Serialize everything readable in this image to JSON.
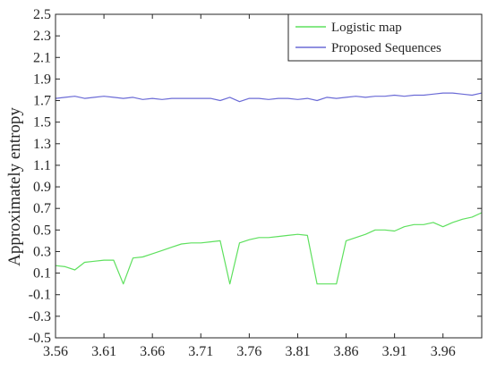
{
  "chart_data": {
    "type": "line",
    "title": "",
    "xlabel": "",
    "ylabel": "Approximately entropy",
    "xlim": [
      3.56,
      4.0
    ],
    "ylim": [
      -0.5,
      2.5
    ],
    "xticks": [
      "3.56",
      "3.61",
      "3.66",
      "3.71",
      "3.76",
      "3.81",
      "3.86",
      "3.91",
      "3.96"
    ],
    "yticks": [
      "-0.5",
      "-0.3",
      "-0.1",
      "0.1",
      "0.3",
      "0.5",
      "0.7",
      "0.9",
      "1.1",
      "1.3",
      "1.5",
      "1.7",
      "1.9",
      "2.1",
      "2.3",
      "2.5"
    ],
    "grid": false,
    "legend_position": "top-right",
    "series": [
      {
        "name": "Logistic map",
        "color": "#5ee05e",
        "x": [
          3.56,
          3.57,
          3.58,
          3.59,
          3.6,
          3.61,
          3.62,
          3.63,
          3.64,
          3.65,
          3.66,
          3.67,
          3.68,
          3.69,
          3.7,
          3.71,
          3.72,
          3.73,
          3.74,
          3.75,
          3.76,
          3.77,
          3.78,
          3.79,
          3.8,
          3.81,
          3.82,
          3.83,
          3.84,
          3.85,
          3.86,
          3.87,
          3.88,
          3.89,
          3.9,
          3.91,
          3.92,
          3.93,
          3.94,
          3.95,
          3.96,
          3.97,
          3.98,
          3.99,
          4.0
        ],
        "y": [
          0.17,
          0.16,
          0.13,
          0.2,
          0.21,
          0.22,
          0.22,
          0.0,
          0.24,
          0.25,
          0.28,
          0.31,
          0.34,
          0.37,
          0.38,
          0.38,
          0.39,
          0.4,
          0.0,
          0.38,
          0.41,
          0.43,
          0.43,
          0.44,
          0.45,
          0.46,
          0.45,
          0.0,
          0.0,
          0.0,
          0.4,
          0.43,
          0.46,
          0.5,
          0.5,
          0.49,
          0.53,
          0.55,
          0.55,
          0.57,
          0.53,
          0.57,
          0.6,
          0.62,
          0.66
        ]
      },
      {
        "name": "Proposed Sequences",
        "color": "#6b6bd6",
        "x": [
          3.56,
          3.57,
          3.58,
          3.59,
          3.6,
          3.61,
          3.62,
          3.63,
          3.64,
          3.65,
          3.66,
          3.67,
          3.68,
          3.69,
          3.7,
          3.71,
          3.72,
          3.73,
          3.74,
          3.75,
          3.76,
          3.77,
          3.78,
          3.79,
          3.8,
          3.81,
          3.82,
          3.83,
          3.84,
          3.85,
          3.86,
          3.87,
          3.88,
          3.89,
          3.9,
          3.91,
          3.92,
          3.93,
          3.94,
          3.95,
          3.96,
          3.97,
          3.98,
          3.99,
          4.0
        ],
        "y": [
          1.72,
          1.73,
          1.74,
          1.72,
          1.73,
          1.74,
          1.73,
          1.72,
          1.73,
          1.71,
          1.72,
          1.71,
          1.72,
          1.72,
          1.72,
          1.72,
          1.72,
          1.7,
          1.73,
          1.69,
          1.72,
          1.72,
          1.71,
          1.72,
          1.72,
          1.71,
          1.72,
          1.7,
          1.73,
          1.72,
          1.73,
          1.74,
          1.73,
          1.74,
          1.74,
          1.75,
          1.74,
          1.75,
          1.75,
          1.76,
          1.77,
          1.77,
          1.76,
          1.75,
          1.77
        ]
      }
    ]
  }
}
